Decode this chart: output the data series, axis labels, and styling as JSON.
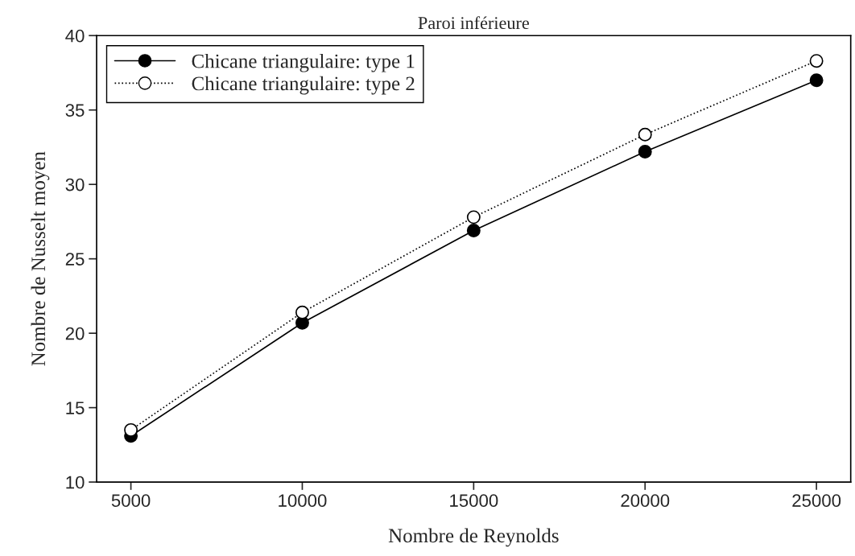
{
  "chart_data": {
    "type": "line",
    "title": "Paroi inférieure",
    "xlabel": "Nombre de Reynolds",
    "ylabel": "Nombre de Nusselt moyen",
    "x": [
      5000,
      10000,
      15000,
      20000,
      25000
    ],
    "series": [
      {
        "name": "Chicane triangulaire: type 1",
        "color": "#000000",
        "values": [
          13.1,
          20.7,
          26.9,
          32.2,
          37.0
        ],
        "marker": "circle",
        "line_style": "solid"
      },
      {
        "name": "Chicane triangulaire: type 2",
        "color": "#000000",
        "values": [
          13.5,
          21.4,
          27.8,
          33.35,
          38.3
        ],
        "marker": "circle",
        "line_style": "dotted"
      }
    ],
    "xlim": [
      4000,
      26000
    ],
    "xticks": [
      5000,
      10000,
      15000,
      20000,
      25000
    ],
    "ylim": [
      10,
      40
    ],
    "yticks": [
      10,
      15,
      20,
      25,
      30,
      35,
      40
    ],
    "grid": false,
    "legend": "top left"
  }
}
